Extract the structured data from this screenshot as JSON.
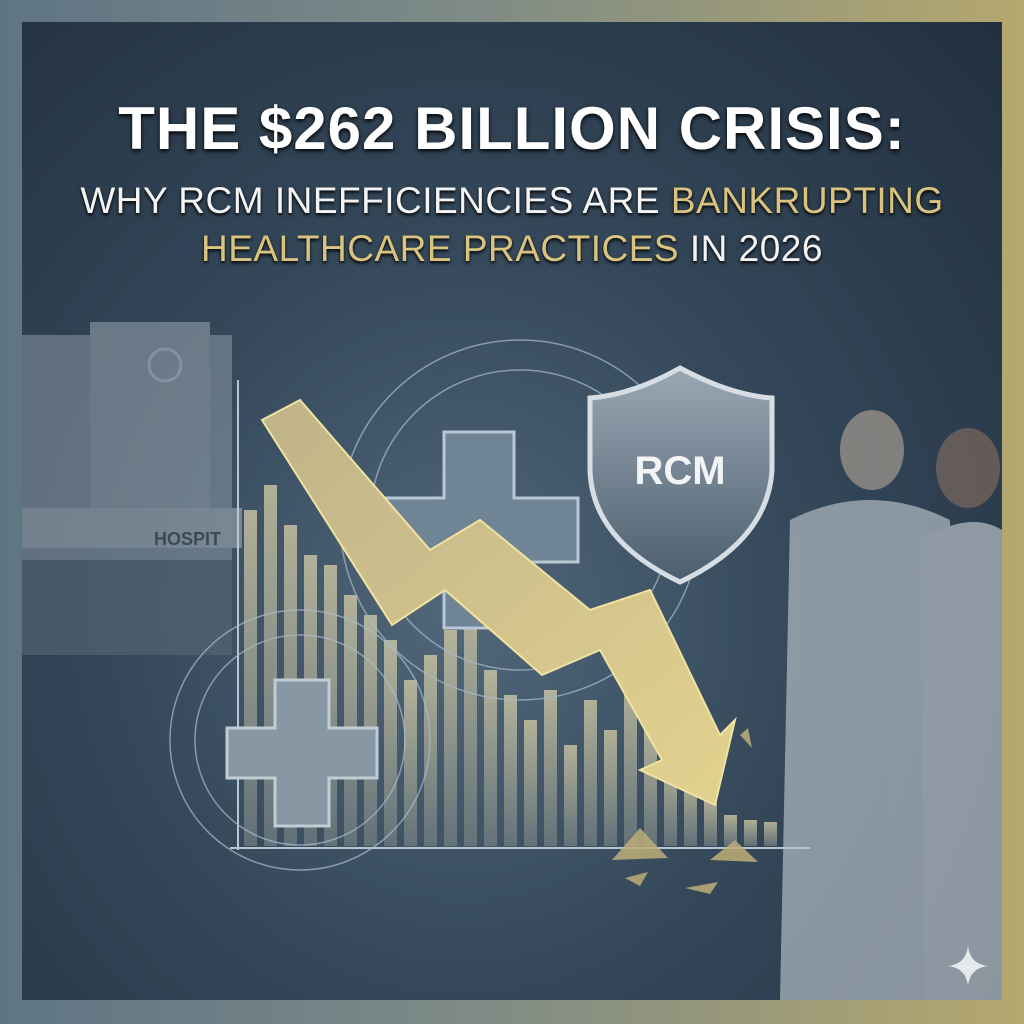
{
  "title": "THE $262 BILLION CRISIS:",
  "subtitle": {
    "line1_white": "WHY RCM INEFFICIENCIES ARE ",
    "line1_gold": "BANKRUPTING",
    "line2_gold": "HEALTHCARE PRACTICES",
    "line2_white": " IN 2026"
  },
  "illustration": {
    "shield_label": "RCM",
    "hospital_sign": "HOSPIT",
    "icons": [
      "hospital-building",
      "medical-cross",
      "shield",
      "doctors",
      "down-arrow",
      "bar-chart",
      "sparkle"
    ]
  },
  "colors": {
    "accent_gold": "#d9c37e",
    "background": "#2a3a48",
    "frame_left": "#5f7585",
    "frame_right": "#b5a86e"
  }
}
